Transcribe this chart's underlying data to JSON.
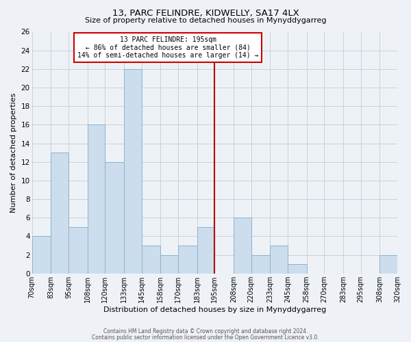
{
  "title": "13, PARC FELINDRE, KIDWELLY, SA17 4LX",
  "subtitle": "Size of property relative to detached houses in Mynyddygarreg",
  "xlabel": "Distribution of detached houses by size in Mynyddygarreg",
  "ylabel": "Number of detached properties",
  "bin_labels": [
    "70sqm",
    "83sqm",
    "95sqm",
    "108sqm",
    "120sqm",
    "133sqm",
    "145sqm",
    "158sqm",
    "170sqm",
    "183sqm",
    "195sqm",
    "208sqm",
    "220sqm",
    "233sqm",
    "245sqm",
    "258sqm",
    "270sqm",
    "283sqm",
    "295sqm",
    "308sqm",
    "320sqm"
  ],
  "bin_edges": [
    70,
    83,
    95,
    108,
    120,
    133,
    145,
    158,
    170,
    183,
    195,
    208,
    220,
    233,
    245,
    258,
    270,
    283,
    295,
    308,
    320
  ],
  "bar_values": [
    4,
    13,
    5,
    16,
    12,
    22,
    3,
    2,
    3,
    5,
    0,
    6,
    2,
    3,
    1,
    0,
    0,
    0,
    0,
    2,
    0
  ],
  "bar_color": "#ccdded",
  "bar_edge_color": "#8ab4cc",
  "grid_color": "#c8d0dc",
  "background_color": "#eef2f7",
  "vline_x": 195,
  "vline_color": "#bb0000",
  "annotation_line1": "13 PARC FELINDRE: 195sqm",
  "annotation_line2": "← 86% of detached houses are smaller (84)",
  "annotation_line3": "14% of semi-detached houses are larger (14) →",
  "annotation_box_color": "#cc0000",
  "ylim": [
    0,
    26
  ],
  "yticks": [
    0,
    2,
    4,
    6,
    8,
    10,
    12,
    14,
    16,
    18,
    20,
    22,
    24,
    26
  ],
  "footer1": "Contains HM Land Registry data © Crown copyright and database right 2024.",
  "footer2": "Contains public sector information licensed under the Open Government Licence v3.0."
}
